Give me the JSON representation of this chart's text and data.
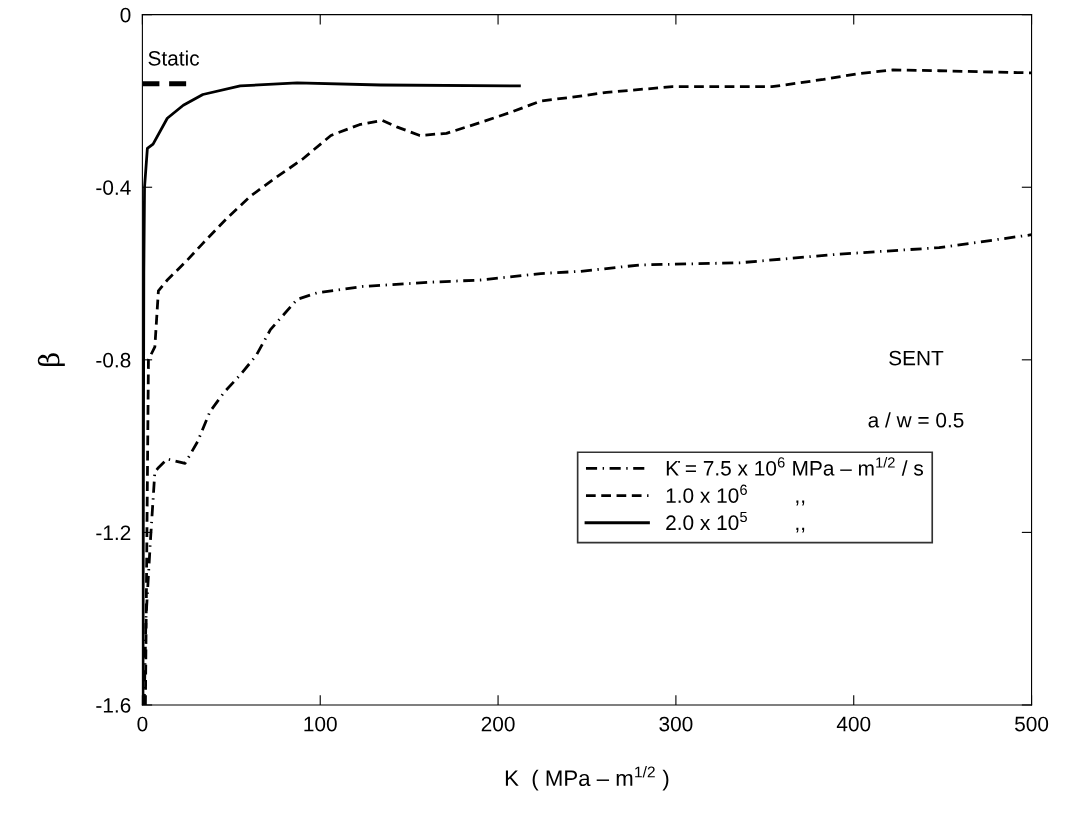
{
  "chart_data": {
    "type": "line",
    "xlabel": "K  ( MPa – m$^{1/2}$ )",
    "ylabel": "β",
    "xlim": [
      0,
      500
    ],
    "ylim": [
      -1.6,
      0
    ],
    "xticks": [
      0,
      100,
      200,
      300,
      400,
      500
    ],
    "yticks": [
      -1.6,
      -1.2,
      -0.8,
      -0.4,
      0
    ],
    "grid": false,
    "legend": "bottom right",
    "marker": "none",
    "annotations": [
      {
        "text": "Static",
        "x": 6,
        "y": -0.16
      },
      "SENT",
      "a / w = 0.5"
    ],
    "series": [
      {
        "name": "K̇ = 7.5 x 10$^{6}$ MPa – m$^{1/2}$ / s",
        "color": "#000000",
        "line_style": "dashdot",
        "x": [
          1,
          2,
          4.5,
          7,
          9,
          14,
          24,
          31,
          38,
          46,
          55,
          64,
          72,
          87,
          98,
          124,
          162,
          190,
          224,
          246,
          280,
          336,
          392,
          448,
          500
        ],
        "values": [
          -1.6,
          -1.4,
          -1.22,
          -1.06,
          -1.05,
          -1.03,
          -1.04,
          -0.99,
          -0.92,
          -0.875,
          -0.835,
          -0.79,
          -0.73,
          -0.66,
          -0.645,
          -0.63,
          -0.62,
          -0.615,
          -0.6,
          -0.595,
          -0.58,
          -0.575,
          -0.555,
          -0.54,
          -0.51
        ]
      },
      {
        "name": "1.0 x 10$^{6}$        ,,",
        "color": "#000000",
        "line_style": "dashed",
        "x": [
          1.7,
          3.4,
          7,
          9,
          14,
          25,
          34,
          48,
          61,
          76,
          90,
          106,
          122,
          135,
          143,
          156,
          171,
          190,
          208,
          224,
          244,
          261,
          298,
          354,
          383,
          402,
          422,
          448,
          500
        ],
        "values": [
          -1.6,
          -0.8,
          -0.77,
          -0.64,
          -0.615,
          -0.57,
          -0.53,
          -0.47,
          -0.42,
          -0.375,
          -0.335,
          -0.28,
          -0.255,
          -0.245,
          -0.26,
          -0.28,
          -0.275,
          -0.25,
          -0.225,
          -0.2,
          -0.19,
          -0.18,
          -0.167,
          -0.167,
          -0.15,
          -0.137,
          -0.128,
          -0.13,
          -0.135
        ]
      },
      {
        "name": "2.0 x 10$^{5}$        ,,",
        "color": "#000000",
        "line_style": "solid",
        "x": [
          0.3,
          0.8,
          1.2,
          2.8,
          6,
          14,
          23,
          34,
          55,
          87,
          134,
          212
        ],
        "values": [
          -1.6,
          -0.6,
          -0.4,
          -0.31,
          -0.3,
          -0.24,
          -0.21,
          -0.185,
          -0.165,
          -0.158,
          -0.163,
          -0.165
        ]
      },
      {
        "color": "#000000",
        "line_style": "dashed",
        "x": [
          0,
          26
        ],
        "values": [
          -0.16,
          -0.16
        ]
      }
    ]
  }
}
